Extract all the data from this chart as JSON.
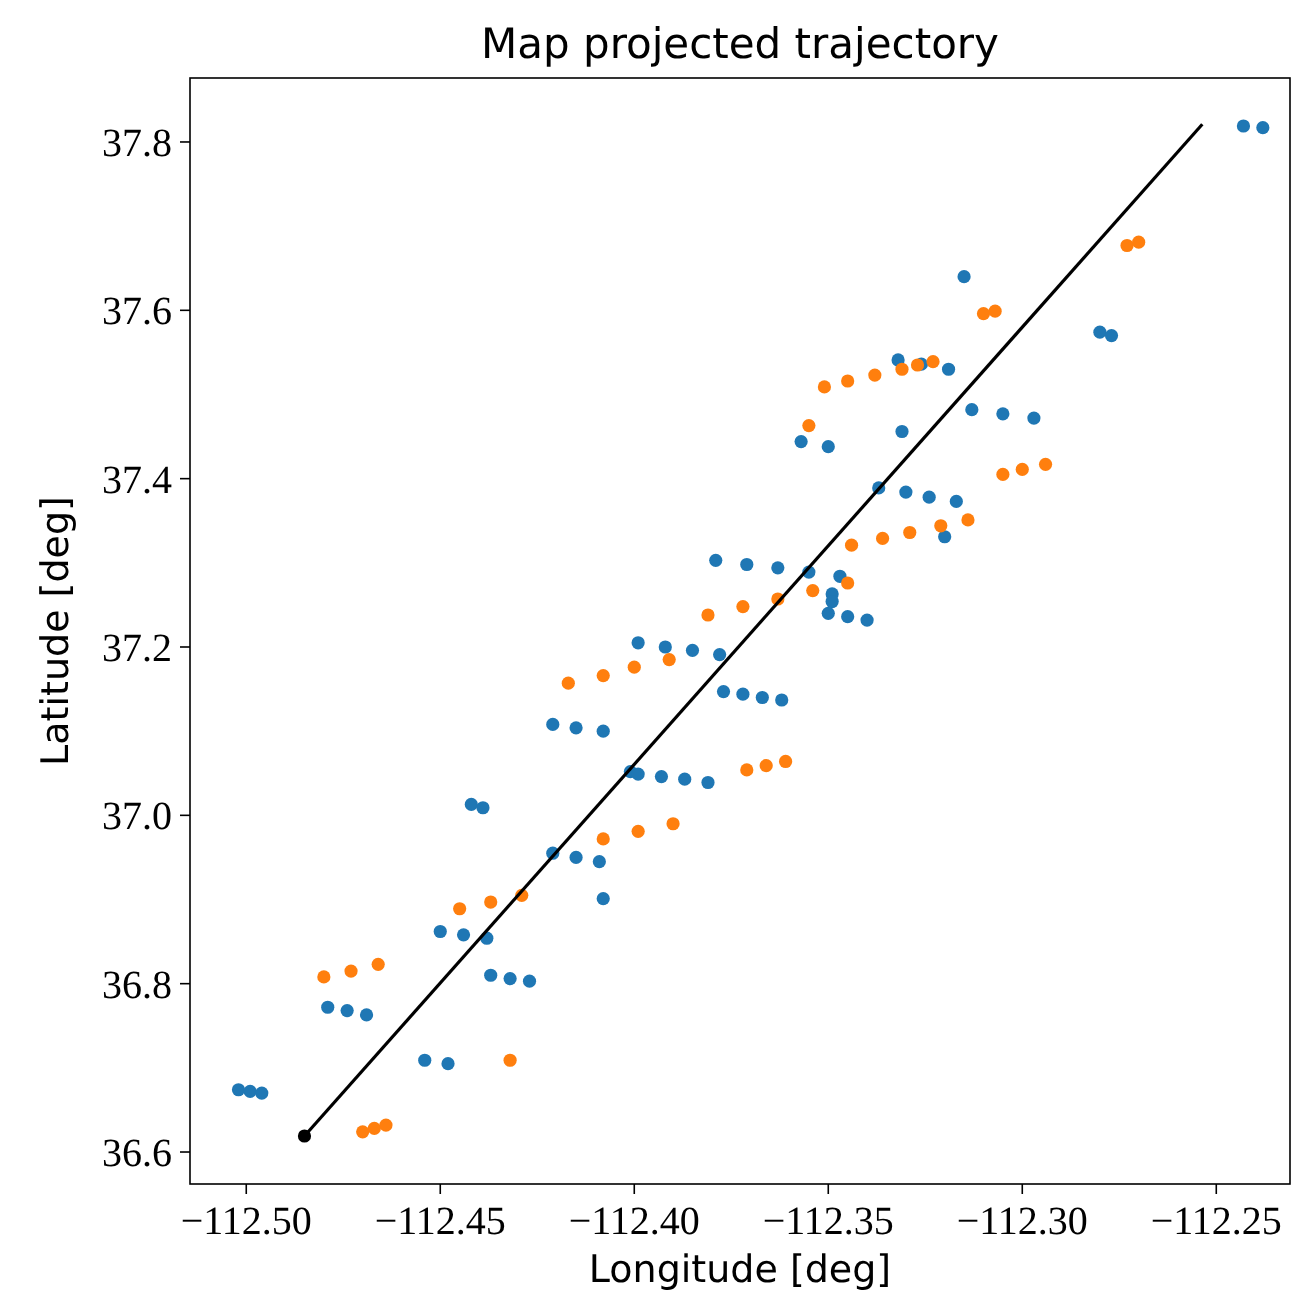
{
  "chart_data": {
    "type": "scatter",
    "title": "Map projected trajectory",
    "xlabel": "Longitude [deg]",
    "ylabel": "Latitude [deg]",
    "xlim": [
      -112.5145,
      -112.231
    ],
    "ylim": [
      36.562,
      37.876
    ],
    "xticks": [
      {
        "value": -112.5,
        "label": "−112.50"
      },
      {
        "value": -112.45,
        "label": "−112.45"
      },
      {
        "value": -112.4,
        "label": "−112.40"
      },
      {
        "value": -112.35,
        "label": "−112.35"
      },
      {
        "value": -112.3,
        "label": "−112.30"
      },
      {
        "value": -112.25,
        "label": "−112.25"
      }
    ],
    "yticks": [
      {
        "value": 36.6,
        "label": "36.6"
      },
      {
        "value": 36.8,
        "label": "36.8"
      },
      {
        "value": 37.0,
        "label": "37.0"
      },
      {
        "value": 37.2,
        "label": "37.2"
      },
      {
        "value": 37.4,
        "label": "37.4"
      },
      {
        "value": 37.6,
        "label": "37.6"
      },
      {
        "value": 37.8,
        "label": "37.8"
      }
    ],
    "grid": false,
    "marker": "circle",
    "series": [
      {
        "color": "#1f77b4",
        "x": [
          -112.502,
          -112.499,
          -112.496,
          -112.479,
          -112.474,
          -112.469,
          -112.454,
          -112.448,
          -112.442,
          -112.439,
          -112.45,
          -112.444,
          -112.438,
          -112.437,
          -112.432,
          -112.427,
          -112.421,
          -112.415,
          -112.409,
          -112.408,
          -112.421,
          -112.415,
          -112.408,
          -112.401,
          -112.399,
          -112.393,
          -112.387,
          -112.381,
          -112.399,
          -112.392,
          -112.385,
          -112.378,
          -112.377,
          -112.372,
          -112.367,
          -112.362,
          -112.379,
          -112.371,
          -112.363,
          -112.355,
          -112.347,
          -112.349,
          -112.349,
          -112.35,
          -112.345,
          -112.34,
          -112.357,
          -112.35,
          -112.331,
          -112.332,
          -112.326,
          -112.319,
          -112.337,
          -112.33,
          -112.324,
          -112.317,
          -112.32,
          -112.313,
          -112.305,
          -112.297,
          -112.315,
          -112.28,
          -112.277,
          -112.243,
          -112.238
        ],
        "values": [
          36.674,
          36.672,
          36.67,
          36.772,
          36.768,
          36.763,
          36.709,
          36.705,
          37.013,
          37.009,
          36.862,
          36.858,
          36.854,
          36.81,
          36.806,
          36.803,
          36.955,
          36.95,
          36.945,
          36.901,
          37.108,
          37.104,
          37.1,
          37.052,
          37.049,
          37.046,
          37.043,
          37.039,
          37.205,
          37.2,
          37.196,
          37.191,
          37.147,
          37.144,
          37.14,
          37.137,
          37.303,
          37.298,
          37.294,
          37.289,
          37.284,
          37.263,
          37.254,
          37.24,
          37.236,
          37.232,
          37.444,
          37.438,
          37.456,
          37.541,
          37.536,
          37.53,
          37.389,
          37.384,
          37.378,
          37.373,
          37.331,
          37.482,
          37.477,
          37.472,
          37.64,
          37.574,
          37.57,
          37.819,
          37.817
        ]
      },
      {
        "color": "#ff7f0e",
        "x": [
          -112.47,
          -112.467,
          -112.464,
          -112.432,
          -112.48,
          -112.473,
          -112.466,
          -112.445,
          -112.437,
          -112.429,
          -112.408,
          -112.399,
          -112.39,
          -112.371,
          -112.366,
          -112.361,
          -112.417,
          -112.408,
          -112.4,
          -112.391,
          -112.381,
          -112.372,
          -112.363,
          -112.354,
          -112.345,
          -112.344,
          -112.336,
          -112.329,
          -112.321,
          -112.314,
          -112.305,
          -112.3,
          -112.294,
          -112.355,
          -112.351,
          -112.345,
          -112.338,
          -112.331,
          -112.327,
          -112.323,
          -112.31,
          -112.307,
          -112.273,
          -112.27
        ],
        "values": [
          36.624,
          36.628,
          36.632,
          36.709,
          36.808,
          36.815,
          36.823,
          36.889,
          36.897,
          36.905,
          36.972,
          36.981,
          36.99,
          37.054,
          37.059,
          37.064,
          37.157,
          37.166,
          37.176,
          37.185,
          37.238,
          37.248,
          37.257,
          37.267,
          37.276,
          37.321,
          37.329,
          37.336,
          37.344,
          37.351,
          37.405,
          37.411,
          37.417,
          37.463,
          37.509,
          37.516,
          37.523,
          37.53,
          37.535,
          37.539,
          37.596,
          37.599,
          37.677,
          37.681
        ]
      },
      {
        "type": "line",
        "marker": "none",
        "color": "#000000",
        "x": [
          -112.485,
          -112.2536
        ],
        "values": [
          36.619,
          37.821
        ]
      },
      {
        "color": "#000000",
        "x": [
          -112.485
        ],
        "values": [
          36.619
        ]
      }
    ]
  }
}
